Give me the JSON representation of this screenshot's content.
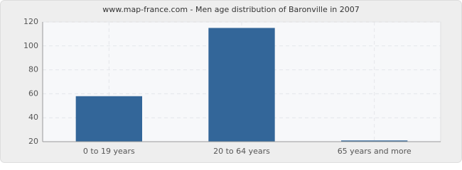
{
  "chart_data": {
    "type": "bar",
    "title": "www.map-france.com - Men age distribution of Baronville in 2007",
    "categories": [
      "0 to 19 years",
      "20 to 64 years",
      "65 years and more"
    ],
    "values": [
      58,
      115,
      21
    ],
    "color": "#336699",
    "ylim": [
      20,
      120
    ],
    "yticks": [
      20,
      40,
      60,
      80,
      100,
      120
    ],
    "grid": true
  }
}
